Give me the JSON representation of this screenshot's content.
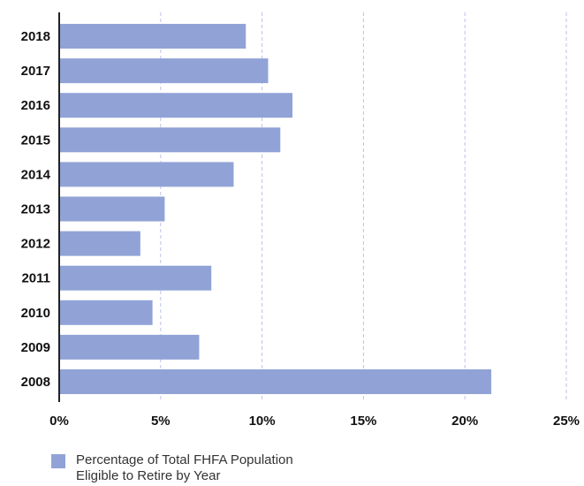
{
  "chart_data": {
    "type": "bar",
    "orientation": "horizontal",
    "categories": [
      "2018",
      "2017",
      "2016",
      "2015",
      "2014",
      "2013",
      "2012",
      "2011",
      "2010",
      "2009",
      "2008"
    ],
    "series": [
      {
        "name": "Percentage of Total FHFA  Population Eligible to Retire by Year",
        "values": [
          9.2,
          10.3,
          11.5,
          10.9,
          8.6,
          5.2,
          4.0,
          7.5,
          4.6,
          6.9,
          21.3
        ]
      }
    ],
    "xticks": [
      "0%",
      "5%",
      "10%",
      "15%",
      "20%",
      "25%"
    ],
    "xlim": [
      0,
      25
    ],
    "grid": "vertical-dashed",
    "legend_position": "bottom-left",
    "bar_color": "#91a3d6",
    "grid_color": "#b9c3e6",
    "axis_color": "#222222"
  },
  "legend": {
    "line1": "Percentage of Total FHFA  Population",
    "line2": "Eligible to Retire by Year"
  }
}
